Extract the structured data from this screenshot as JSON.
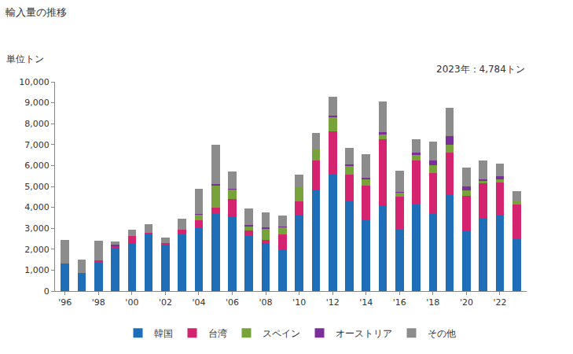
{
  "chart_data": {
    "type": "bar",
    "title": "輸入量の推移",
    "ylabel": "単位トン",
    "annotations": [
      "2023年：4,784トン"
    ],
    "stacked": true,
    "legend": "bottom",
    "grid": false,
    "categories": [
      "'96",
      null,
      "'98",
      null,
      "'00",
      null,
      "'02",
      null,
      "'04",
      null,
      "'06",
      null,
      "'08",
      null,
      "'10",
      null,
      "'12",
      null,
      "'14",
      null,
      "'16",
      null,
      "'18",
      null,
      "'20",
      null,
      "'22",
      null
    ],
    "ylim": [
      0,
      10000
    ],
    "yticks": [
      0,
      {
        "value": 1000,
        "label": "1,000"
      },
      {
        "value": 2000,
        "label": "2,000"
      },
      {
        "value": 3000,
        "label": "3,000"
      },
      {
        "value": 4000,
        "label": "4,000"
      },
      {
        "value": 5000,
        "label": "5,000"
      },
      {
        "value": 6000,
        "label": "6,000"
      },
      {
        "value": 7000,
        "label": "7,000"
      },
      {
        "value": 8000,
        "label": "8,000"
      },
      {
        "value": 9000,
        "label": "9,000"
      },
      {
        "value": 10000,
        "label": "10,000"
      }
    ],
    "series": [
      {
        "name": "韓国",
        "color": "#1f6fb8",
        "values": [
          1300,
          850,
          1400,
          2050,
          2300,
          2750,
          2250,
          2700,
          3000,
          3700,
          3550,
          2650,
          2300,
          2000,
          3650,
          4850,
          5550,
          4300,
          3400,
          4050,
          2950,
          4150,
          3700,
          4600,
          2850,
          3500,
          3650,
          2500
        ]
      },
      {
        "name": "台湾",
        "color": "#d4246f",
        "values": [
          0,
          0,
          50,
          100,
          350,
          50,
          50,
          250,
          400,
          300,
          850,
          250,
          150,
          700,
          650,
          1400,
          2100,
          1250,
          1650,
          3200,
          1550,
          2100,
          1950,
          2000,
          1700,
          1650,
          1550,
          1650
        ]
      },
      {
        "name": "スペイン",
        "color": "#78a23a",
        "values": [
          0,
          0,
          0,
          0,
          0,
          0,
          0,
          0,
          250,
          1050,
          450,
          200,
          550,
          350,
          700,
          550,
          650,
          450,
          300,
          250,
          200,
          250,
          350,
          400,
          250,
          100,
          150,
          150
        ]
      },
      {
        "name": "オーストリア",
        "color": "#7b2f9b",
        "values": [
          0,
          0,
          0,
          50,
          0,
          0,
          0,
          0,
          50,
          50,
          50,
          50,
          50,
          50,
          0,
          0,
          100,
          50,
          50,
          100,
          50,
          100,
          250,
          400,
          200,
          100,
          150,
          0
        ]
      },
      {
        "name": "その他",
        "color": "#8c8c8c",
        "values": [
          1150,
          650,
          950,
          150,
          300,
          400,
          250,
          500,
          1200,
          1900,
          800,
          800,
          700,
          500,
          550,
          750,
          900,
          800,
          1150,
          1450,
          1000,
          650,
          900,
          1350,
          900,
          900,
          600,
          484
        ]
      }
    ]
  }
}
